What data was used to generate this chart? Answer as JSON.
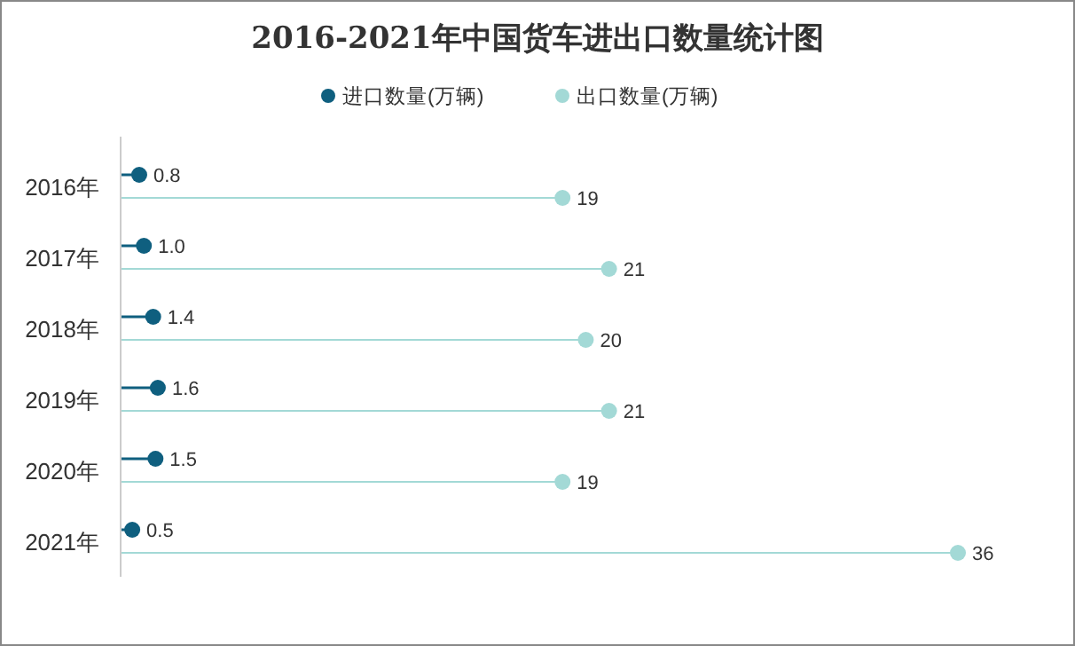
{
  "chart_data": {
    "type": "lollipop",
    "orientation": "horizontal",
    "title": "2016-2021年中国货车进出口数量统计图",
    "categories": [
      "2016年",
      "2017年",
      "2018年",
      "2019年",
      "2020年",
      "2021年"
    ],
    "series": [
      {
        "name": "进口数量(万辆)",
        "color": "#0f5f7f",
        "values": [
          0.8,
          1.0,
          1.4,
          1.6,
          1.5,
          0.5
        ],
        "value_labels": [
          "0.8",
          "1.0",
          "1.4",
          "1.6",
          "1.5",
          "0.5"
        ]
      },
      {
        "name": "出口数量(万辆)",
        "color": "#a3d9d6",
        "values": [
          19,
          21,
          20,
          21,
          19,
          36
        ],
        "value_labels": [
          "19",
          "21",
          "20",
          "21",
          "19",
          "36"
        ]
      }
    ],
    "legend": "top",
    "marker": "circle",
    "tick_labels": "y"
  }
}
